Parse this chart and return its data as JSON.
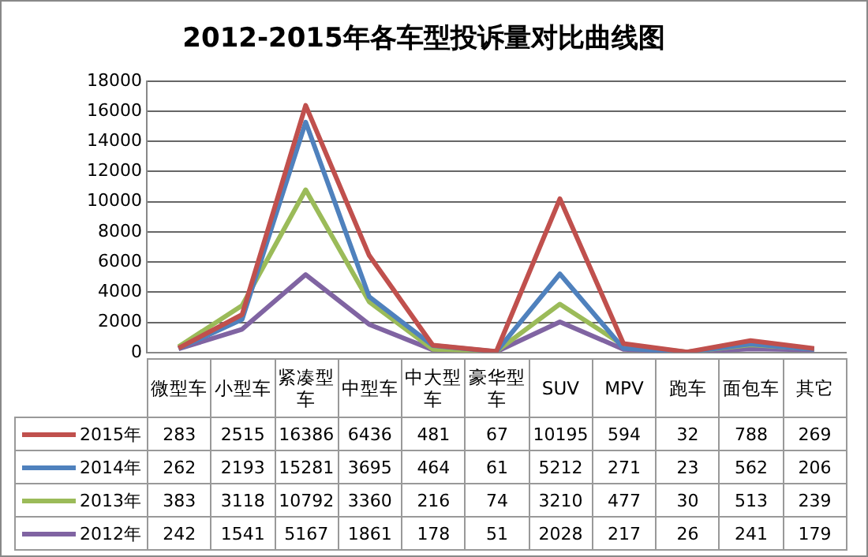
{
  "chart_data": {
    "type": "line",
    "title": "2012-2015年各车型投诉量对比曲线图",
    "categories": [
      "微型车",
      "小型车",
      "紧凑型车",
      "中型车",
      "中大型车",
      "豪华型车",
      "SUV",
      "MPV",
      "跑车",
      "面包车",
      "其它"
    ],
    "series": [
      {
        "name": "2015年",
        "color": "#c0504d",
        "values": [
          283,
          2515,
          16386,
          6436,
          481,
          67,
          10195,
          594,
          32,
          788,
          269
        ]
      },
      {
        "name": "2014年",
        "color": "#4f81bd",
        "values": [
          262,
          2193,
          15281,
          3695,
          464,
          61,
          5212,
          271,
          23,
          562,
          206
        ]
      },
      {
        "name": "2013年",
        "color": "#9bbb59",
        "values": [
          383,
          3118,
          10792,
          3360,
          216,
          74,
          3210,
          477,
          30,
          513,
          239
        ]
      },
      {
        "name": "2012年",
        "color": "#8064a2",
        "values": [
          242,
          1541,
          5167,
          1861,
          178,
          51,
          2028,
          217,
          26,
          241,
          179
        ]
      }
    ],
    "ylim": [
      0,
      18000
    ],
    "yticks": [
      0,
      2000,
      4000,
      6000,
      8000,
      10000,
      12000,
      14000,
      16000,
      18000
    ],
    "grid": "y",
    "legend": "bottom",
    "data_labels": true,
    "marker": "none",
    "line_style": "solid"
  }
}
